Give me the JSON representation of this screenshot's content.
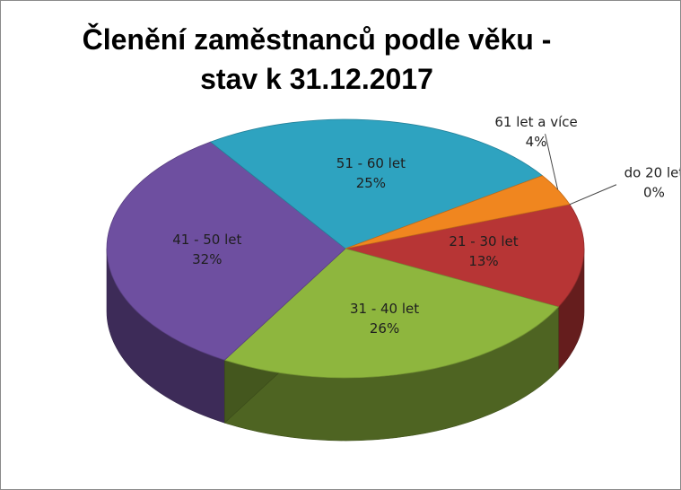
{
  "chart_data": {
    "type": "pie",
    "style": "3d",
    "title_lines": [
      "Členění zaměstnanců podle věku -",
      "stav k 31.12.2017"
    ],
    "slices": [
      {
        "label": "do 20 let",
        "percent_label": "0%",
        "value": 0,
        "color": "#e87020"
      },
      {
        "label": "21 - 30 let",
        "percent_label": "13%",
        "value": 13,
        "color": "#b73535"
      },
      {
        "label": "31 - 40 let",
        "percent_label": "26%",
        "value": 26,
        "color": "#8eb63e"
      },
      {
        "label": "41 - 50 let",
        "percent_label": "32%",
        "value": 32,
        "color": "#6e4fa0"
      },
      {
        "label": "51 - 60 let",
        "percent_label": "25%",
        "value": 25,
        "color": "#2ea3c0"
      },
      {
        "label": "61 let a více",
        "percent_label": "4%",
        "value": 4,
        "color": "#f0861f"
      }
    ],
    "legend": "none"
  }
}
